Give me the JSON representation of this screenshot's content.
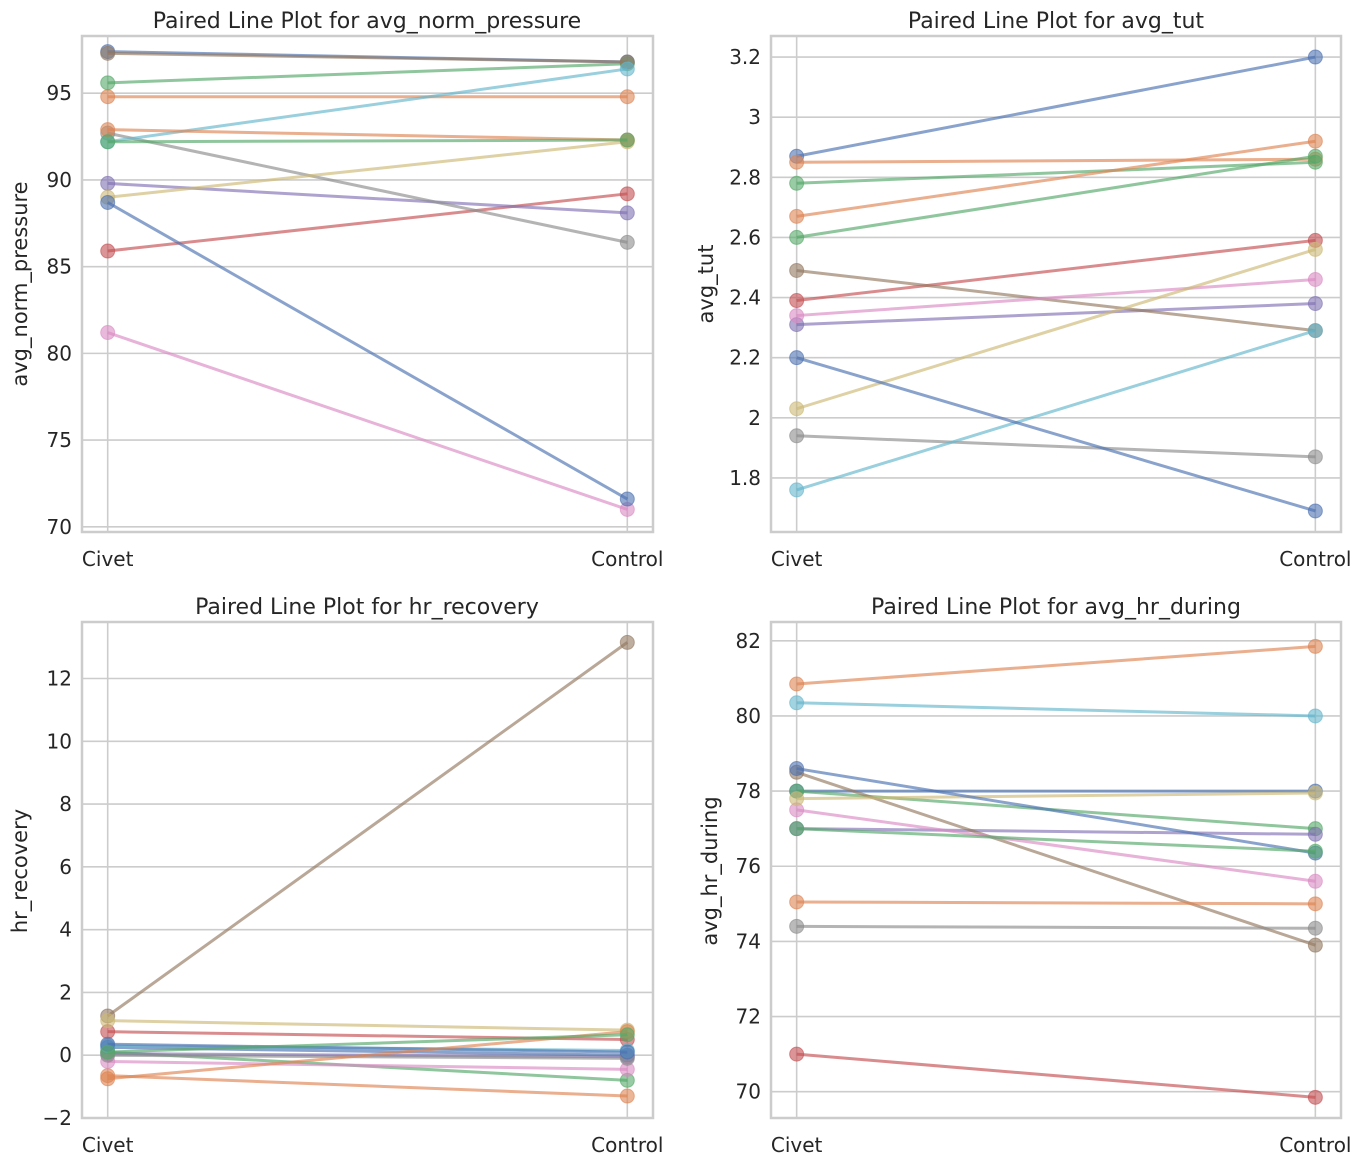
{
  "colors": {
    "palette": [
      "#4c72b0",
      "#dd8452",
      "#55a868",
      "#c44e52",
      "#8172b3",
      "#937860",
      "#da8bc3",
      "#8c8c8c",
      "#ccb974",
      "#64b5cd"
    ],
    "grid": "#cccccc",
    "spine": "#cccccc",
    "text": "#262626"
  },
  "chart_data": [
    {
      "type": "line",
      "title": "Paired Line Plot for avg_norm_pressure",
      "xlabel": "",
      "ylabel": "avg_norm_pressure",
      "categories": [
        "Civet",
        "Control"
      ],
      "ylim": [
        69.7,
        98.3
      ],
      "yticks": [
        70,
        75,
        80,
        85,
        90,
        95
      ],
      "grid": true,
      "series": [
        {
          "values": [
            97.4,
            96.8
          ],
          "color": "#4c72b0"
        },
        {
          "values": [
            94.8,
            94.8
          ],
          "color": "#dd8452"
        },
        {
          "values": [
            95.6,
            96.7
          ],
          "color": "#55a868"
        },
        {
          "values": [
            85.9,
            89.2
          ],
          "color": "#c44e52"
        },
        {
          "values": [
            89.8,
            88.1
          ],
          "color": "#8172b3"
        },
        {
          "values": [
            97.3,
            96.8
          ],
          "color": "#937860"
        },
        {
          "values": [
            81.2,
            71.0
          ],
          "color": "#da8bc3"
        },
        {
          "values": [
            92.7,
            86.4
          ],
          "color": "#8c8c8c"
        },
        {
          "values": [
            89.0,
            92.2
          ],
          "color": "#ccb974"
        },
        {
          "values": [
            92.2,
            96.4
          ],
          "color": "#64b5cd"
        },
        {
          "values": [
            88.7,
            71.6
          ],
          "color": "#4c72b0"
        },
        {
          "values": [
            92.9,
            92.3
          ],
          "color": "#dd8452"
        },
        {
          "values": [
            92.2,
            92.3
          ],
          "color": "#55a868"
        }
      ]
    },
    {
      "type": "line",
      "title": "Paired Line Plot for avg_tut",
      "xlabel": "",
      "ylabel": "avg_tut",
      "categories": [
        "Civet",
        "Control"
      ],
      "ylim": [
        1.62,
        3.27
      ],
      "yticks": [
        1.8,
        2.0,
        2.2,
        2.4,
        2.6,
        2.8,
        3.0,
        3.2
      ],
      "grid": true,
      "series": [
        {
          "values": [
            2.87,
            3.2
          ],
          "color": "#4c72b0"
        },
        {
          "values": [
            2.85,
            2.86
          ],
          "color": "#dd8452"
        },
        {
          "values": [
            2.78,
            2.85
          ],
          "color": "#55a868"
        },
        {
          "values": [
            2.39,
            2.59
          ],
          "color": "#c44e52"
        },
        {
          "values": [
            2.31,
            2.38
          ],
          "color": "#8172b3"
        },
        {
          "values": [
            2.49,
            2.29
          ],
          "color": "#937860"
        },
        {
          "values": [
            2.34,
            2.46
          ],
          "color": "#da8bc3"
        },
        {
          "values": [
            1.94,
            1.87
          ],
          "color": "#8c8c8c"
        },
        {
          "values": [
            2.03,
            2.56
          ],
          "color": "#ccb974"
        },
        {
          "values": [
            1.76,
            2.29
          ],
          "color": "#64b5cd"
        },
        {
          "values": [
            2.2,
            1.69
          ],
          "color": "#4c72b0"
        },
        {
          "values": [
            2.67,
            2.92
          ],
          "color": "#dd8452"
        },
        {
          "values": [
            2.6,
            2.87
          ],
          "color": "#55a868"
        }
      ]
    },
    {
      "type": "line",
      "title": "Paired Line Plot for hr_recovery",
      "xlabel": "",
      "ylabel": "hr_recovery",
      "categories": [
        "Civet",
        "Control"
      ],
      "ylim": [
        -2.0,
        13.8
      ],
      "yticks": [
        -2,
        0,
        2,
        4,
        6,
        8,
        10,
        12
      ],
      "ytick_labels": [
        "−2",
        "0",
        "2",
        "4",
        "6",
        "8",
        "10",
        "12"
      ],
      "grid": true,
      "series": [
        {
          "values": [
            0.25,
            0.0
          ],
          "color": "#4c72b0"
        },
        {
          "values": [
            -0.65,
            -1.3
          ],
          "color": "#dd8452"
        },
        {
          "values": [
            0.1,
            -0.8
          ],
          "color": "#55a868"
        },
        {
          "values": [
            0.75,
            0.5
          ],
          "color": "#c44e52"
        },
        {
          "values": [
            0.05,
            -0.05
          ],
          "color": "#8172b3"
        },
        {
          "values": [
            1.25,
            13.15
          ],
          "color": "#937860"
        },
        {
          "values": [
            -0.2,
            -0.45
          ],
          "color": "#da8bc3"
        },
        {
          "values": [
            0.0,
            -0.1
          ],
          "color": "#8c8c8c"
        },
        {
          "values": [
            1.1,
            0.8
          ],
          "color": "#ccb974"
        },
        {
          "values": [
            0.3,
            0.15
          ],
          "color": "#64b5cd"
        },
        {
          "values": [
            0.35,
            0.1
          ],
          "color": "#4c72b0"
        },
        {
          "values": [
            -0.75,
            0.75
          ],
          "color": "#dd8452"
        },
        {
          "values": [
            0.1,
            0.65
          ],
          "color": "#55a868"
        }
      ]
    },
    {
      "type": "line",
      "title": "Paired Line Plot for avg_hr_during",
      "xlabel": "",
      "ylabel": "avg_hr_during",
      "categories": [
        "Civet",
        "Control"
      ],
      "ylim": [
        69.3,
        82.5
      ],
      "yticks": [
        70,
        72,
        74,
        76,
        78,
        80,
        82
      ],
      "grid": true,
      "series": [
        {
          "values": [
            78.0,
            78.0
          ],
          "color": "#4c72b0"
        },
        {
          "values": [
            80.85,
            81.85
          ],
          "color": "#dd8452"
        },
        {
          "values": [
            78.0,
            77.0
          ],
          "color": "#55a868"
        },
        {
          "values": [
            71.0,
            69.85
          ],
          "color": "#c44e52"
        },
        {
          "values": [
            77.0,
            76.85
          ],
          "color": "#8172b3"
        },
        {
          "values": [
            78.5,
            73.9
          ],
          "color": "#937860"
        },
        {
          "values": [
            77.5,
            75.6
          ],
          "color": "#da8bc3"
        },
        {
          "values": [
            74.4,
            74.35
          ],
          "color": "#8c8c8c"
        },
        {
          "values": [
            77.8,
            77.95
          ],
          "color": "#ccb974"
        },
        {
          "values": [
            80.35,
            80.0
          ],
          "color": "#64b5cd"
        },
        {
          "values": [
            78.6,
            76.35
          ],
          "color": "#4c72b0"
        },
        {
          "values": [
            75.05,
            75.0
          ],
          "color": "#dd8452"
        },
        {
          "values": [
            77.0,
            76.4
          ],
          "color": "#55a868"
        }
      ]
    }
  ]
}
